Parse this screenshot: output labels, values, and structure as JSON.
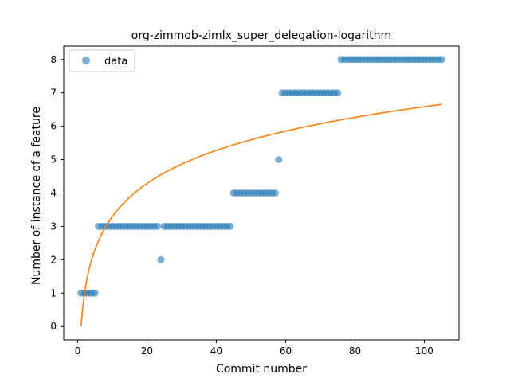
{
  "chart_data": {
    "type": "scatter",
    "title": "org-zimmob-zimlx_super_delegation-logarithm",
    "xlabel": "Commit number",
    "ylabel": "Number of instance of a feature",
    "xlim": [
      -4,
      110
    ],
    "ylim": [
      -0.4,
      8.4
    ],
    "x_ticks": [
      0,
      20,
      40,
      60,
      80,
      100
    ],
    "y_ticks": [
      0,
      1,
      2,
      3,
      4,
      5,
      6,
      7,
      8
    ],
    "grid": false,
    "legend": {
      "position": "top-left",
      "entries": [
        "data"
      ]
    },
    "colors": {
      "points": "#1f77b4",
      "fit": "#ff7f0e"
    },
    "series": [
      {
        "name": "data",
        "kind": "scatter",
        "x": [
          1,
          2,
          3,
          4,
          5,
          6,
          7,
          8,
          9,
          10,
          11,
          12,
          13,
          14,
          15,
          16,
          17,
          18,
          19,
          20,
          21,
          22,
          23,
          24,
          25,
          26,
          27,
          28,
          29,
          30,
          31,
          32,
          33,
          34,
          35,
          36,
          37,
          38,
          39,
          40,
          41,
          42,
          43,
          44,
          45,
          46,
          47,
          48,
          49,
          50,
          51,
          52,
          53,
          54,
          55,
          56,
          57,
          58,
          59,
          60,
          61,
          62,
          63,
          64,
          65,
          66,
          67,
          68,
          69,
          70,
          71,
          72,
          73,
          74,
          75,
          76,
          77,
          78,
          79,
          80,
          81,
          82,
          83,
          84,
          85,
          86,
          87,
          88,
          89,
          90,
          91,
          92,
          93,
          94,
          95,
          96,
          97,
          98,
          99,
          100,
          101,
          102,
          103,
          104,
          105
        ],
        "y": [
          1,
          1,
          1,
          1,
          1,
          3,
          3,
          3,
          3,
          3,
          3,
          3,
          3,
          3,
          3,
          3,
          3,
          3,
          3,
          3,
          3,
          3,
          3,
          2,
          3,
          3,
          3,
          3,
          3,
          3,
          3,
          3,
          3,
          3,
          3,
          3,
          3,
          3,
          3,
          3,
          3,
          3,
          3,
          3,
          4,
          4,
          4,
          4,
          4,
          4,
          4,
          4,
          4,
          4,
          4,
          4,
          4,
          5,
          7,
          7,
          7,
          7,
          7,
          7,
          7,
          7,
          7,
          7,
          7,
          7,
          7,
          7,
          7,
          7,
          7,
          8,
          8,
          8,
          8,
          8,
          8,
          8,
          8,
          8,
          8,
          8,
          8,
          8,
          8,
          8,
          8,
          8,
          8,
          8,
          8,
          8,
          8,
          8,
          8,
          8,
          8,
          8,
          8,
          8,
          8
        ]
      },
      {
        "name": "",
        "kind": "line",
        "model": "a*ln(x)",
        "a": 1.43,
        "x_range": [
          1,
          105
        ]
      }
    ]
  }
}
